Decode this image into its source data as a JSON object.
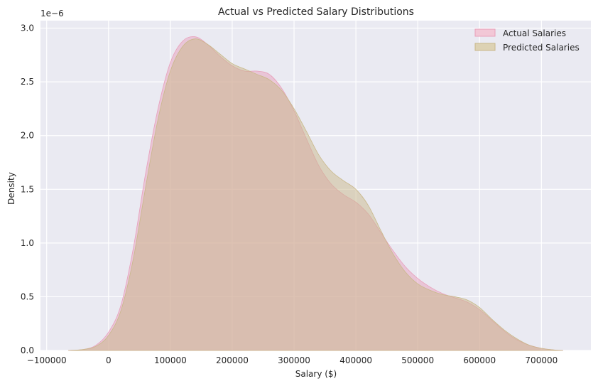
{
  "chart_data": {
    "type": "area",
    "title": "Actual vs Predicted Salary Distributions",
    "xlabel": "Salary ($)",
    "ylabel": "Density",
    "y_scale_label": "1e−6",
    "xlim": [
      -110000,
      780000
    ],
    "ylim": [
      0,
      3.07
    ],
    "grid": true,
    "legend_position": "top-right",
    "x_ticks": [
      -100000,
      0,
      100000,
      200000,
      300000,
      400000,
      500000,
      600000,
      700000
    ],
    "x_tick_labels": [
      "−100000",
      "0",
      "100000",
      "200000",
      "300000",
      "400000",
      "500000",
      "600000",
      "700000"
    ],
    "y_ticks": [
      0,
      0.5,
      1.0,
      1.5,
      2.0,
      2.5,
      3.0
    ],
    "y_tick_labels": [
      "0.0",
      "0.5",
      "1.0",
      "1.5",
      "2.0",
      "2.5",
      "3.0"
    ],
    "x": [
      -65000,
      -40000,
      -20000,
      0,
      20000,
      40000,
      60000,
      80000,
      100000,
      120000,
      140000,
      160000,
      180000,
      200000,
      220000,
      240000,
      260000,
      280000,
      300000,
      320000,
      340000,
      360000,
      380000,
      400000,
      420000,
      440000,
      460000,
      480000,
      500000,
      520000,
      540000,
      560000,
      580000,
      600000,
      620000,
      640000,
      660000,
      680000,
      700000,
      720000,
      735000
    ],
    "series": [
      {
        "name": "Actual Salaries",
        "color": "#e8a0bb",
        "values": [
          0,
          0.01,
          0.05,
          0.17,
          0.42,
          0.95,
          1.65,
          2.25,
          2.68,
          2.88,
          2.92,
          2.85,
          2.74,
          2.65,
          2.6,
          2.6,
          2.57,
          2.44,
          2.23,
          1.97,
          1.72,
          1.55,
          1.45,
          1.38,
          1.27,
          1.1,
          0.93,
          0.78,
          0.67,
          0.59,
          0.53,
          0.49,
          0.45,
          0.38,
          0.28,
          0.18,
          0.1,
          0.05,
          0.02,
          0.005,
          0
        ]
      },
      {
        "name": "Predicted Salaries",
        "color": "#c9b88a",
        "values": [
          0,
          0.01,
          0.04,
          0.14,
          0.37,
          0.85,
          1.52,
          2.15,
          2.6,
          2.83,
          2.9,
          2.85,
          2.76,
          2.67,
          2.62,
          2.57,
          2.52,
          2.42,
          2.25,
          2.04,
          1.82,
          1.67,
          1.58,
          1.5,
          1.35,
          1.12,
          0.9,
          0.73,
          0.62,
          0.56,
          0.52,
          0.5,
          0.47,
          0.4,
          0.29,
          0.19,
          0.11,
          0.05,
          0.02,
          0.005,
          0
        ]
      }
    ],
    "legend": [
      {
        "label": "Actual Salaries",
        "fill": "#f2c7d6",
        "stroke": "#e8a0bb"
      },
      {
        "label": "Predicted Salaries",
        "fill": "#ddd2b4",
        "stroke": "#c9b88a"
      }
    ],
    "colors": {
      "figure_bg": "#ffffff",
      "axes_bg": "#eaeaf2",
      "grid": "#ffffff",
      "text": "#262626"
    }
  }
}
